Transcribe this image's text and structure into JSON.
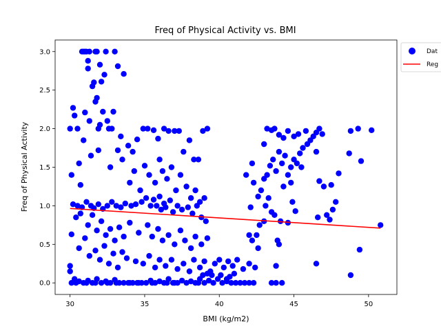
{
  "chart_data": {
    "type": "scatter",
    "title": "Freq of Physical Activity vs. BMI",
    "xlabel": "BMI (kg/m2)",
    "ylabel": "Freq of Physical Activity",
    "xlim": [
      29.0,
      51.9
    ],
    "ylim": [
      -0.15,
      3.15
    ],
    "xticks": [
      "30",
      "35",
      "40",
      "45",
      "50"
    ],
    "yticks": [
      "0.0",
      "0.5",
      "1.0",
      "1.5",
      "2.0",
      "2.5",
      "3.0"
    ],
    "grid": false,
    "legend_position": "outside-top-right",
    "series": [
      {
        "name": "Dat",
        "kind": "points",
        "color": "#0000ff",
        "points": [
          [
            30.0,
            2.0
          ],
          [
            30.1,
            1.4
          ],
          [
            30.2,
            2.27
          ],
          [
            30.3,
            2.17
          ],
          [
            30.5,
            2.0
          ],
          [
            30.6,
            1.55
          ],
          [
            30.7,
            1.27
          ],
          [
            30.8,
            3.0
          ],
          [
            30.9,
            3.0
          ],
          [
            31.0,
            3.0
          ],
          [
            31.1,
            3.0
          ],
          [
            31.2,
            2.88
          ],
          [
            31.2,
            2.78
          ],
          [
            31.3,
            3.0
          ],
          [
            31.5,
            2.55
          ],
          [
            31.6,
            2.6
          ],
          [
            31.7,
            3.0
          ],
          [
            31.8,
            3.0
          ],
          [
            31.8,
            2.4
          ],
          [
            31.9,
            2.0
          ],
          [
            32.0,
            2.83
          ],
          [
            32.1,
            2.61
          ],
          [
            32.2,
            2.22
          ],
          [
            32.3,
            2.7
          ],
          [
            32.4,
            3.0
          ],
          [
            32.5,
            2.1
          ],
          [
            32.6,
            2.0
          ],
          [
            32.8,
            2.0
          ],
          [
            32.9,
            2.22
          ],
          [
            33.0,
            3.0
          ],
          [
            33.2,
            2.81
          ],
          [
            33.4,
            1.9
          ],
          [
            33.6,
            2.71
          ],
          [
            31.0,
            2.21
          ],
          [
            31.3,
            2.1
          ],
          [
            31.7,
            2.35
          ],
          [
            32.0,
            2.05
          ],
          [
            30.9,
            1.85
          ],
          [
            31.4,
            1.65
          ],
          [
            31.9,
            1.72
          ],
          [
            32.7,
            1.5
          ],
          [
            33.2,
            1.72
          ],
          [
            33.5,
            1.6
          ],
          [
            33.9,
            1.78
          ],
          [
            34.2,
            1.7
          ],
          [
            34.5,
            1.86
          ],
          [
            34.9,
            2.0
          ],
          [
            35.2,
            2.0
          ],
          [
            35.6,
            1.98
          ],
          [
            35.9,
            1.87
          ],
          [
            36.3,
            2.0
          ],
          [
            36.6,
            1.97
          ],
          [
            37.0,
            1.97
          ],
          [
            37.3,
            1.97
          ],
          [
            37.6,
            1.7
          ],
          [
            38.0,
            1.85
          ],
          [
            38.3,
            1.6
          ],
          [
            38.6,
            1.6
          ],
          [
            38.9,
            1.97
          ],
          [
            39.2,
            2.0
          ],
          [
            34.0,
            1.3
          ],
          [
            34.3,
            1.45
          ],
          [
            34.7,
            1.2
          ],
          [
            35.0,
            1.52
          ],
          [
            35.3,
            1.4
          ],
          [
            35.7,
            1.3
          ],
          [
            36.0,
            1.6
          ],
          [
            36.2,
            1.45
          ],
          [
            36.5,
            1.35
          ],
          [
            36.8,
            1.5
          ],
          [
            37.1,
            1.2
          ],
          [
            37.4,
            1.4
          ],
          [
            37.8,
            1.25
          ],
          [
            38.1,
            1.1
          ],
          [
            38.4,
            1.2
          ],
          [
            38.7,
            1.05
          ],
          [
            39.0,
            1.1
          ],
          [
            34.1,
            1.0
          ],
          [
            34.4,
            1.02
          ],
          [
            34.8,
            1.05
          ],
          [
            35.1,
            1.1
          ],
          [
            35.4,
            1.0
          ],
          [
            35.6,
            1.08
          ],
          [
            35.8,
            1.0
          ],
          [
            36.0,
            1.12
          ],
          [
            36.1,
            0.95
          ],
          [
            36.3,
            1.03
          ],
          [
            36.4,
            0.98
          ],
          [
            36.7,
            1.07
          ],
          [
            36.9,
            0.92
          ],
          [
            37.2,
            1.0
          ],
          [
            37.5,
            0.95
          ],
          [
            37.9,
            0.98
          ],
          [
            38.2,
            0.9
          ],
          [
            38.5,
            1.0
          ],
          [
            38.8,
            0.85
          ],
          [
            39.1,
            0.8
          ],
          [
            30.2,
            1.02
          ],
          [
            30.5,
            1.0
          ],
          [
            30.8,
            0.98
          ],
          [
            31.1,
            1.05
          ],
          [
            31.4,
            1.0
          ],
          [
            31.6,
            0.97
          ],
          [
            31.9,
            1.02
          ],
          [
            32.2,
            0.96
          ],
          [
            32.5,
            1.0
          ],
          [
            32.8,
            1.05
          ],
          [
            33.1,
            1.0
          ],
          [
            33.4,
            0.98
          ],
          [
            33.7,
            1.03
          ],
          [
            30.4,
            0.85
          ],
          [
            30.7,
            0.9
          ],
          [
            31.2,
            0.75
          ],
          [
            31.5,
            0.88
          ],
          [
            31.8,
            0.68
          ],
          [
            32.1,
            0.8
          ],
          [
            32.4,
            0.62
          ],
          [
            32.7,
            0.7
          ],
          [
            33.0,
            0.55
          ],
          [
            33.3,
            0.72
          ],
          [
            33.6,
            0.6
          ],
          [
            34.0,
            0.78
          ],
          [
            34.6,
            0.65
          ],
          [
            35.2,
            0.75
          ],
          [
            35.5,
            0.6
          ],
          [
            35.9,
            0.7
          ],
          [
            36.2,
            0.55
          ],
          [
            36.6,
            0.62
          ],
          [
            37.0,
            0.5
          ],
          [
            37.4,
            0.68
          ],
          [
            37.7,
            0.55
          ],
          [
            38.1,
            0.45
          ],
          [
            38.4,
            0.6
          ],
          [
            38.8,
            0.5
          ],
          [
            39.2,
            0.58
          ],
          [
            30.1,
            0.63
          ],
          [
            30.6,
            0.45
          ],
          [
            31.0,
            0.58
          ],
          [
            31.3,
            0.35
          ],
          [
            31.7,
            0.42
          ],
          [
            32.0,
            0.3
          ],
          [
            32.3,
            0.48
          ],
          [
            32.6,
            0.25
          ],
          [
            32.9,
            0.38
          ],
          [
            33.2,
            0.2
          ],
          [
            33.5,
            0.4
          ],
          [
            33.8,
            0.32
          ],
          [
            34.4,
            0.28
          ],
          [
            34.9,
            0.25
          ],
          [
            35.3,
            0.35
          ],
          [
            35.7,
            0.2
          ],
          [
            36.0,
            0.3
          ],
          [
            36.4,
            0.22
          ],
          [
            36.8,
            0.3
          ],
          [
            37.2,
            0.18
          ],
          [
            37.6,
            0.25
          ],
          [
            38.0,
            0.15
          ],
          [
            38.3,
            0.3
          ],
          [
            38.7,
            0.2
          ],
          [
            39.0,
            0.28
          ],
          [
            39.4,
            0.15
          ],
          [
            39.7,
            0.25
          ],
          [
            40.0,
            0.3
          ],
          [
            40.3,
            0.2
          ],
          [
            40.6,
            0.28
          ],
          [
            40.9,
            0.22
          ],
          [
            41.2,
            0.3
          ],
          [
            41.6,
            0.18
          ],
          [
            42.0,
            0.25
          ],
          [
            42.4,
            0.2
          ],
          [
            30.0,
            0.15
          ],
          [
            30.0,
            0.22
          ],
          [
            30.3,
            0.05
          ],
          [
            30.6,
            0.02
          ],
          [
            30.9,
            0.0
          ],
          [
            31.2,
            0.03
          ],
          [
            31.5,
            0.0
          ],
          [
            31.8,
            0.05
          ],
          [
            32.1,
            0.0
          ],
          [
            32.4,
            0.02
          ],
          [
            32.7,
            0.0
          ],
          [
            33.0,
            0.04
          ],
          [
            33.3,
            0.0
          ],
          [
            33.6,
            0.0
          ],
          [
            33.9,
            0.0
          ],
          [
            34.2,
            0.0
          ],
          [
            34.5,
            0.0
          ],
          [
            34.8,
            0.0
          ],
          [
            35.1,
            0.0
          ],
          [
            35.4,
            0.03
          ],
          [
            35.7,
            0.0
          ],
          [
            36.0,
            0.02
          ],
          [
            36.3,
            0.0
          ],
          [
            36.6,
            0.05
          ],
          [
            36.9,
            0.0
          ],
          [
            37.2,
            0.0
          ],
          [
            37.5,
            0.03
          ],
          [
            37.8,
            0.0
          ],
          [
            38.1,
            0.02
          ],
          [
            38.4,
            0.0
          ],
          [
            38.7,
            0.05
          ],
          [
            39.0,
            0.0
          ],
          [
            39.3,
            0.03
          ],
          [
            39.6,
            0.0
          ],
          [
            39.9,
            0.05
          ],
          [
            40.2,
            0.0
          ],
          [
            40.5,
            0.02
          ],
          [
            40.8,
            0.0
          ],
          [
            41.1,
            0.0
          ],
          [
            41.4,
            0.0
          ],
          [
            41.7,
            0.0
          ],
          [
            42.0,
            0.0
          ],
          [
            42.3,
            0.0
          ],
          [
            43.5,
            0.0
          ],
          [
            43.8,
            0.0
          ],
          [
            44.2,
            0.0
          ],
          [
            30.1,
            0.0
          ],
          [
            30.4,
            0.0
          ],
          [
            31.1,
            0.0
          ],
          [
            31.7,
            0.0
          ],
          [
            32.5,
            0.0
          ],
          [
            33.1,
            0.0
          ],
          [
            34.0,
            0.0
          ],
          [
            34.6,
            0.0
          ],
          [
            35.5,
            0.0
          ],
          [
            36.5,
            0.0
          ],
          [
            37.0,
            0.0
          ],
          [
            38.6,
            0.0
          ],
          [
            39.5,
            0.1
          ],
          [
            40.1,
            0.1
          ],
          [
            40.7,
            0.08
          ],
          [
            41.0,
            0.12
          ],
          [
            39.2,
            0.12
          ],
          [
            38.9,
            0.1
          ],
          [
            42.0,
            0.62
          ],
          [
            42.2,
            0.55
          ],
          [
            42.5,
            0.62
          ],
          [
            42.6,
            0.45
          ],
          [
            42.7,
            0.75
          ],
          [
            43.0,
            0.8
          ],
          [
            42.1,
            0.98
          ],
          [
            42.3,
            1.3
          ],
          [
            42.6,
            1.12
          ],
          [
            42.8,
            1.2
          ],
          [
            43.0,
            1.35
          ],
          [
            43.2,
            1.4
          ],
          [
            43.4,
            1.52
          ],
          [
            43.6,
            1.6
          ],
          [
            43.8,
            1.45
          ],
          [
            44.0,
            1.7
          ],
          [
            44.2,
            1.55
          ],
          [
            44.4,
            1.65
          ],
          [
            44.6,
            1.4
          ],
          [
            44.8,
            1.5
          ],
          [
            45.0,
            1.6
          ],
          [
            45.2,
            1.55
          ],
          [
            45.4,
            1.68
          ],
          [
            45.6,
            1.75
          ],
          [
            45.9,
            1.8
          ],
          [
            46.1,
            1.85
          ],
          [
            46.3,
            1.9
          ],
          [
            46.5,
            1.95
          ],
          [
            46.7,
            2.0
          ],
          [
            46.9,
            1.93
          ],
          [
            43.0,
            1.8
          ],
          [
            43.2,
            2.0
          ],
          [
            43.5,
            1.98
          ],
          [
            43.7,
            2.0
          ],
          [
            44.0,
            1.92
          ],
          [
            44.3,
            1.88
          ],
          [
            44.6,
            1.97
          ],
          [
            45.0,
            1.9
          ],
          [
            45.3,
            1.93
          ],
          [
            45.8,
            1.97
          ],
          [
            43.1,
            1.0
          ],
          [
            43.3,
            1.1
          ],
          [
            43.5,
            0.92
          ],
          [
            43.7,
            0.88
          ],
          [
            44.1,
            0.8
          ],
          [
            44.3,
            1.25
          ],
          [
            44.6,
            0.78
          ],
          [
            44.9,
            1.05
          ],
          [
            45.1,
            0.93
          ],
          [
            44.8,
            1.3
          ],
          [
            45.5,
            1.5
          ],
          [
            41.8,
            1.4
          ],
          [
            42.2,
            1.55
          ],
          [
            43.9,
            0.55
          ],
          [
            44.0,
            0.5
          ],
          [
            43.8,
            0.22
          ],
          [
            46.5,
            1.7
          ],
          [
            46.7,
            1.32
          ],
          [
            47.0,
            1.25
          ],
          [
            47.2,
            0.88
          ],
          [
            47.4,
            0.82
          ],
          [
            47.6,
            0.95
          ],
          [
            47.8,
            1.05
          ],
          [
            48.0,
            1.42
          ],
          [
            46.6,
            0.85
          ],
          [
            47.5,
            1.27
          ],
          [
            48.7,
            1.68
          ],
          [
            48.8,
            1.97
          ],
          [
            49.3,
            2.0
          ],
          [
            50.2,
            1.98
          ],
          [
            49.5,
            1.58
          ],
          [
            49.4,
            0.43
          ],
          [
            48.8,
            0.1
          ],
          [
            50.8,
            0.75
          ],
          [
            46.5,
            0.25
          ],
          [
            40.5,
            0.05
          ]
        ]
      },
      {
        "name": "Reg",
        "kind": "line",
        "color": "#ff0000",
        "points": [
          [
            30.0,
            0.965
          ],
          [
            50.8,
            0.71
          ]
        ]
      }
    ]
  }
}
